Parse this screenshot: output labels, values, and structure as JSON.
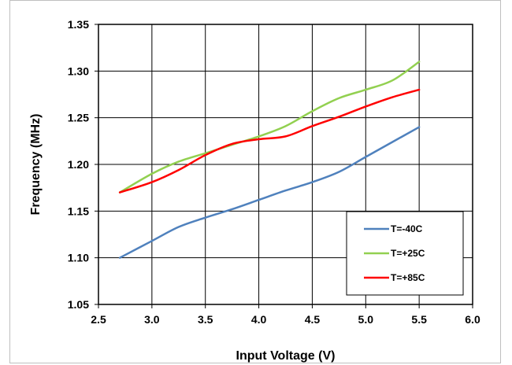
{
  "chart_data": {
    "type": "line",
    "xlabel": "Input Voltage (V)",
    "ylabel": "Frequency (MHz)",
    "xlim": [
      2.5,
      6.0
    ],
    "ylim": [
      1.05,
      1.35
    ],
    "x_ticks": [
      "2.5",
      "3.0",
      "3.5",
      "4.0",
      "4.5",
      "5.0",
      "5.5",
      "6.0"
    ],
    "y_ticks": [
      "1.05",
      "1.10",
      "1.15",
      "1.20",
      "1.25",
      "1.30",
      "1.35"
    ],
    "grid": true,
    "legend_position": "bottom-right",
    "series": [
      {
        "name": "T=-40C",
        "color": "#4f81bd",
        "points": [
          [
            2.7,
            1.1
          ],
          [
            3.0,
            1.118
          ],
          [
            3.25,
            1.133
          ],
          [
            3.5,
            1.143
          ],
          [
            3.75,
            1.152
          ],
          [
            4.0,
            1.162
          ],
          [
            4.25,
            1.172
          ],
          [
            4.5,
            1.181
          ],
          [
            4.75,
            1.192
          ],
          [
            5.0,
            1.208
          ],
          [
            5.25,
            1.224
          ],
          [
            5.5,
            1.24
          ]
        ]
      },
      {
        "name": "T=+25C",
        "color": "#92d050",
        "points": [
          [
            2.7,
            1.17
          ],
          [
            3.0,
            1.19
          ],
          [
            3.25,
            1.203
          ],
          [
            3.5,
            1.212
          ],
          [
            3.75,
            1.221
          ],
          [
            4.0,
            1.23
          ],
          [
            4.25,
            1.241
          ],
          [
            4.5,
            1.257
          ],
          [
            4.75,
            1.271
          ],
          [
            5.0,
            1.28
          ],
          [
            5.25,
            1.29
          ],
          [
            5.5,
            1.31
          ]
        ]
      },
      {
        "name": "T=+85C",
        "color": "#ff0000",
        "points": [
          [
            2.7,
            1.17
          ],
          [
            3.0,
            1.181
          ],
          [
            3.25,
            1.194
          ],
          [
            3.5,
            1.21
          ],
          [
            3.75,
            1.222
          ],
          [
            4.0,
            1.227
          ],
          [
            4.25,
            1.23
          ],
          [
            4.5,
            1.241
          ],
          [
            4.75,
            1.251
          ],
          [
            5.0,
            1.262
          ],
          [
            5.25,
            1.272
          ],
          [
            5.5,
            1.28
          ]
        ]
      }
    ]
  }
}
